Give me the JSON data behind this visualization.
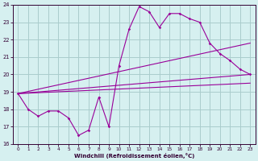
{
  "xlabel": "Windchill (Refroidissement éolien,°C)",
  "background_color": "#d6f0f0",
  "grid_color": "#aacccc",
  "line_color": "#990099",
  "xlim": [
    -0.5,
    23.5
  ],
  "ylim": [
    16,
    24
  ],
  "yticks": [
    16,
    17,
    18,
    19,
    20,
    21,
    22,
    23,
    24
  ],
  "xticks": [
    0,
    1,
    2,
    3,
    4,
    5,
    6,
    7,
    8,
    9,
    10,
    11,
    12,
    13,
    14,
    15,
    16,
    17,
    18,
    19,
    20,
    21,
    22,
    23
  ],
  "series1_x": [
    0,
    1,
    2,
    3,
    4,
    5,
    6,
    7,
    8,
    9,
    10,
    11,
    12,
    13,
    14,
    15,
    16,
    17,
    18,
    19,
    20,
    21,
    22,
    23
  ],
  "series1_y": [
    18.9,
    18.0,
    17.6,
    17.9,
    17.9,
    17.5,
    16.5,
    16.8,
    18.7,
    17.0,
    20.5,
    22.6,
    23.9,
    23.6,
    22.7,
    23.5,
    23.5,
    23.2,
    23.0,
    21.8,
    21.2,
    20.8,
    20.3,
    20.0
  ],
  "line2_x": [
    0,
    23
  ],
  "line2_y": [
    18.9,
    21.8
  ],
  "line3_x": [
    0,
    23
  ],
  "line3_y": [
    18.9,
    20.0
  ],
  "line4_x": [
    0,
    23
  ],
  "line4_y": [
    18.9,
    19.5
  ]
}
